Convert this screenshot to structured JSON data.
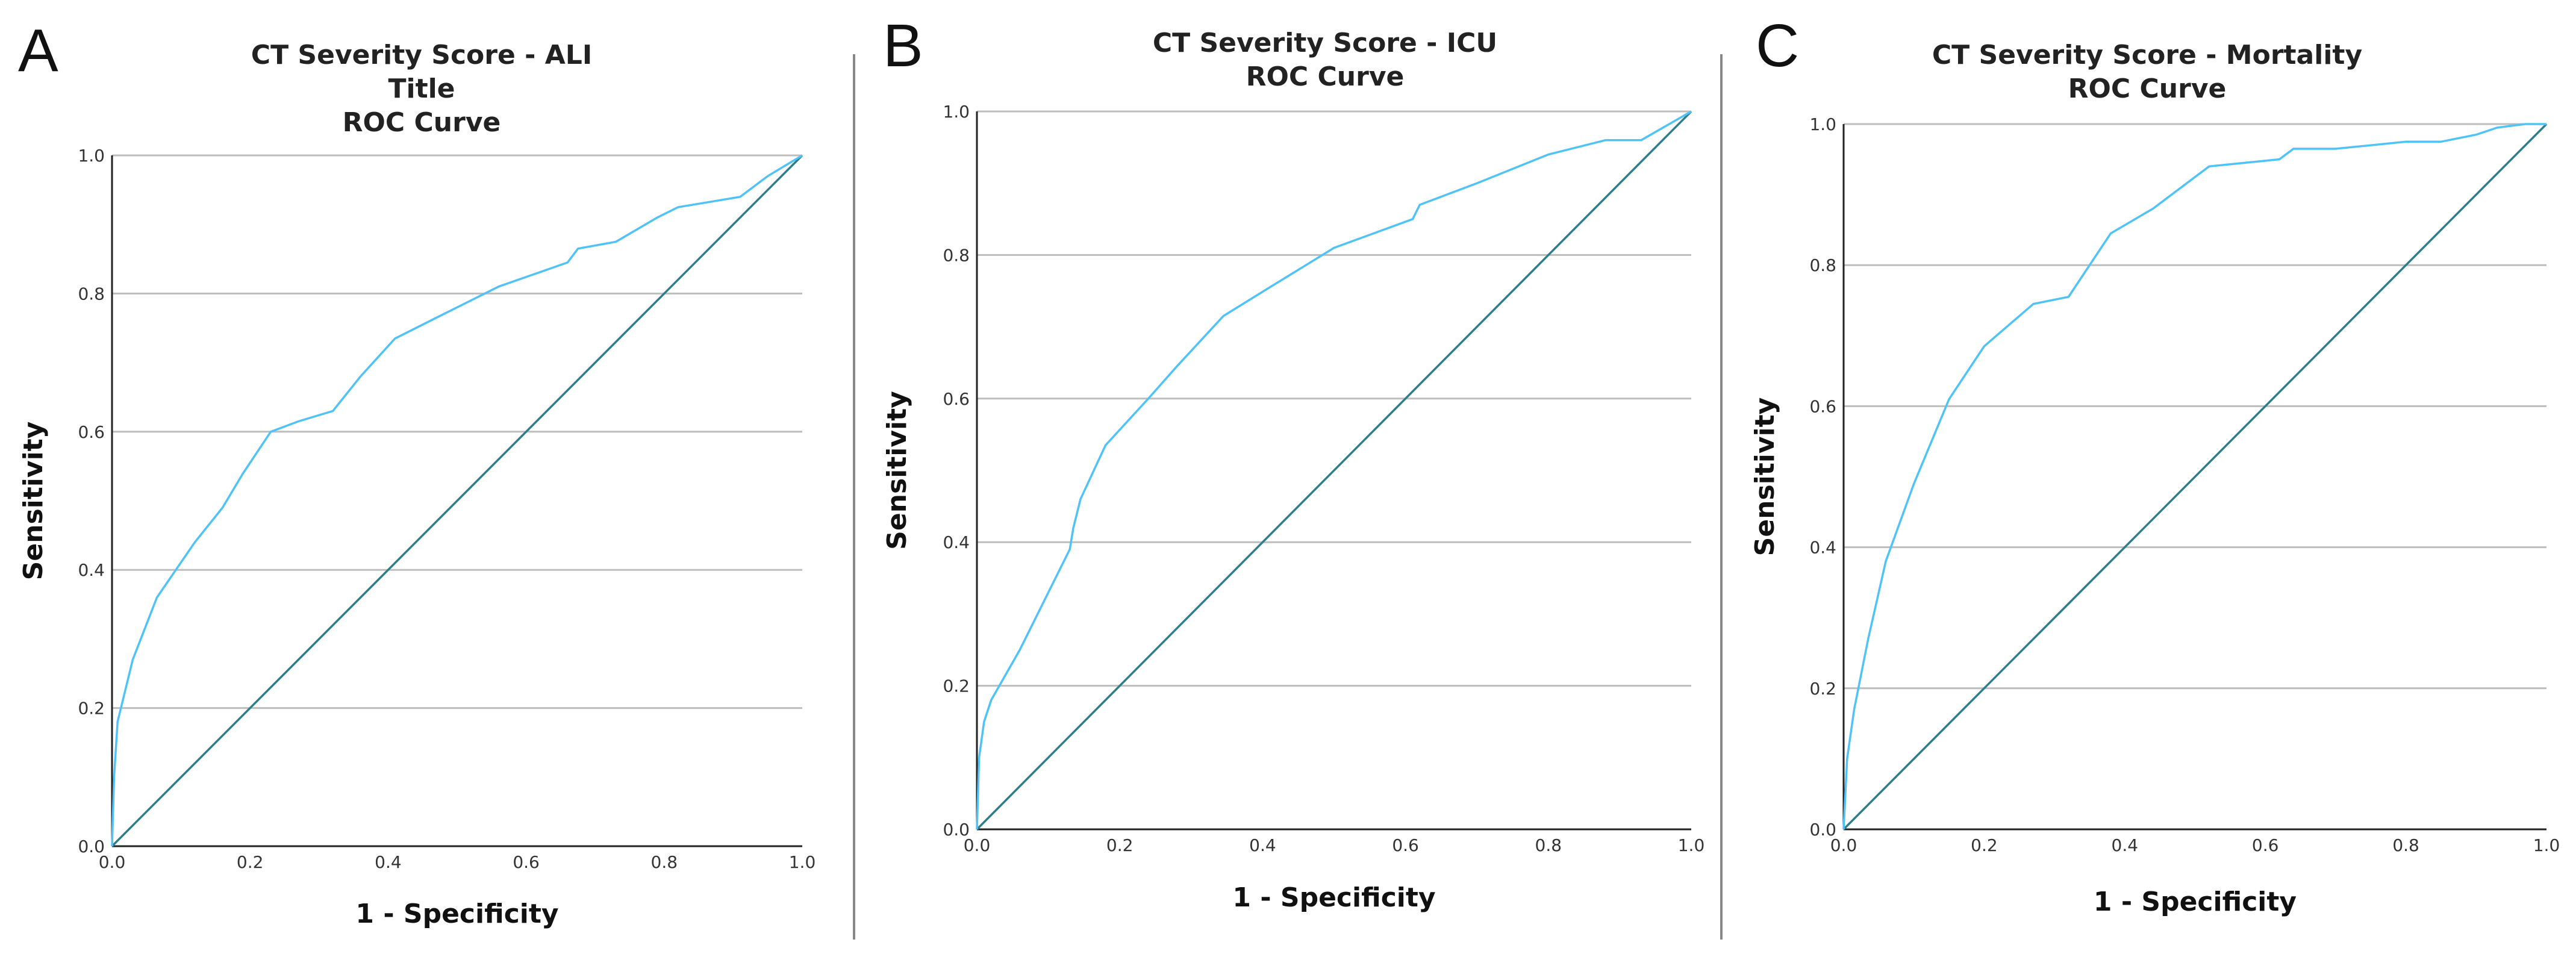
{
  "chart_data": [
    {
      "type": "line",
      "panel": "A",
      "title_lines": [
        "CT Severity Score - ALI",
        "Title",
        "ROC Curve"
      ],
      "xlabel": "1 - Specificity",
      "ylabel": "Sensitivity",
      "xlim": [
        0,
        1
      ],
      "ylim": [
        0,
        1
      ],
      "xticks": [
        "0.0",
        "0.2",
        "0.4",
        "0.6",
        "0.8",
        "1.0"
      ],
      "yticks": [
        "0.0",
        "0.2",
        "0.4",
        "0.6",
        "0.8",
        "1.0"
      ],
      "grid": "horizontal",
      "reference_line": {
        "x": [
          0,
          1
        ],
        "y": [
          0,
          1
        ]
      },
      "series": [
        {
          "name": "ROC",
          "x": [
            0.0,
            0.003,
            0.008,
            0.03,
            0.065,
            0.12,
            0.16,
            0.19,
            0.23,
            0.27,
            0.32,
            0.36,
            0.41,
            0.47,
            0.56,
            0.66,
            0.675,
            0.73,
            0.79,
            0.82,
            0.85,
            0.91,
            0.95,
            1.0
          ],
          "y": [
            0.0,
            0.1,
            0.18,
            0.27,
            0.36,
            0.44,
            0.49,
            0.54,
            0.6,
            0.615,
            0.63,
            0.68,
            0.735,
            0.765,
            0.81,
            0.845,
            0.865,
            0.875,
            0.91,
            0.925,
            0.93,
            0.94,
            0.97,
            1.0
          ]
        }
      ]
    },
    {
      "type": "line",
      "panel": "B",
      "title_lines": [
        "CT Severity Score - ICU",
        "ROC Curve"
      ],
      "xlabel": "1 - Specificity",
      "ylabel": "Sensitivity",
      "xlim": [
        0,
        1
      ],
      "ylim": [
        0,
        1
      ],
      "xticks": [
        "0.0",
        "0.2",
        "0.4",
        "0.6",
        "0.8",
        "1.0"
      ],
      "yticks": [
        "0.0",
        "0.2",
        "0.4",
        "0.6",
        "0.8",
        "1.0"
      ],
      "grid": "horizontal",
      "reference_line": {
        "x": [
          0,
          1
        ],
        "y": [
          0,
          1
        ]
      },
      "series": [
        {
          "name": "ROC",
          "x": [
            0.0,
            0.003,
            0.01,
            0.02,
            0.06,
            0.1,
            0.13,
            0.135,
            0.145,
            0.18,
            0.24,
            0.28,
            0.345,
            0.41,
            0.5,
            0.61,
            0.62,
            0.7,
            0.8,
            0.88,
            0.93,
            1.0
          ],
          "y": [
            0.0,
            0.1,
            0.15,
            0.18,
            0.25,
            0.33,
            0.39,
            0.42,
            0.46,
            0.535,
            0.6,
            0.645,
            0.715,
            0.755,
            0.81,
            0.85,
            0.87,
            0.9,
            0.94,
            0.96,
            0.96,
            1.0
          ]
        }
      ]
    },
    {
      "type": "line",
      "panel": "C",
      "title_lines": [
        "CT Severity Score - Mortality",
        "ROC Curve"
      ],
      "xlabel": "1 - Specificity",
      "ylabel": "Sensitivity",
      "xlim": [
        0,
        1
      ],
      "ylim": [
        0,
        1
      ],
      "xticks": [
        "0.0",
        "0.2",
        "0.4",
        "0.6",
        "0.8",
        "1.0"
      ],
      "yticks": [
        "0.0",
        "0.2",
        "0.4",
        "0.6",
        "0.8",
        "1.0"
      ],
      "grid": "horizontal",
      "reference_line": {
        "x": [
          0,
          1
        ],
        "y": [
          0,
          1
        ]
      },
      "series": [
        {
          "name": "ROC",
          "x": [
            0.0,
            0.005,
            0.015,
            0.035,
            0.06,
            0.1,
            0.15,
            0.2,
            0.27,
            0.32,
            0.38,
            0.44,
            0.52,
            0.62,
            0.64,
            0.7,
            0.8,
            0.85,
            0.9,
            0.93,
            0.97,
            1.0
          ],
          "y": [
            0.0,
            0.1,
            0.17,
            0.27,
            0.38,
            0.49,
            0.61,
            0.685,
            0.745,
            0.755,
            0.845,
            0.88,
            0.94,
            0.95,
            0.965,
            0.965,
            0.975,
            0.975,
            0.985,
            0.995,
            1.0,
            1.0
          ]
        }
      ]
    }
  ]
}
